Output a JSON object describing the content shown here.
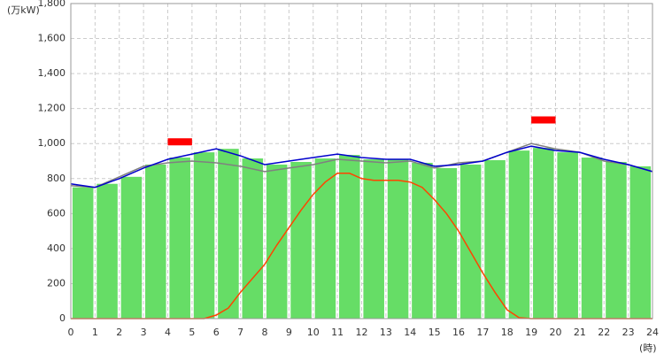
{
  "chart_data": {
    "type": "bar",
    "y_label": "(万kW)",
    "x_label": "(時)",
    "xlim": [
      0,
      24
    ],
    "xticks": [
      0,
      1,
      2,
      3,
      4,
      5,
      6,
      7,
      8,
      9,
      10,
      11,
      12,
      13,
      14,
      15,
      16,
      17,
      18,
      19,
      20,
      21,
      22,
      23,
      24
    ],
    "ylim": [
      0,
      1800
    ],
    "yticks": [
      0,
      200,
      400,
      600,
      800,
      {
        "value": 1000,
        "label": "1,000"
      },
      {
        "value": 1200,
        "label": "1,200"
      },
      {
        "value": 1400,
        "label": "1,400"
      },
      {
        "value": 1600,
        "label": "1,600"
      },
      {
        "value": 1800,
        "label": "1,800"
      }
    ],
    "grid": true,
    "series": [
      {
        "type": "bar",
        "color": "#66dd66",
        "x": [
          0,
          1,
          2,
          3,
          4,
          5,
          6,
          7,
          8,
          9,
          10,
          11,
          12,
          13,
          14,
          15,
          16,
          17,
          18,
          19,
          20,
          21,
          22,
          23
        ],
        "values": [
          750,
          770,
          810,
          880,
          920,
          950,
          970,
          915,
          880,
          895,
          915,
          935,
          910,
          910,
          890,
          860,
          880,
          905,
          960,
          975,
          950,
          920,
          895,
          870
        ]
      },
      {
        "type": "line",
        "color": "#808080",
        "x": [
          0,
          1,
          2,
          3,
          4,
          5,
          6,
          7,
          8,
          9,
          10,
          11,
          12,
          13,
          14,
          15,
          16,
          17,
          18,
          19,
          20,
          21,
          22,
          23,
          24
        ],
        "values": [
          760,
          750,
          810,
          870,
          890,
          900,
          890,
          870,
          840,
          860,
          880,
          910,
          900,
          890,
          900,
          860,
          890,
          900,
          950,
          1000,
          970,
          950,
          900,
          880,
          840
        ]
      },
      {
        "type": "line",
        "color": "#0000cc",
        "x": [
          0,
          1,
          2,
          3,
          4,
          5,
          6,
          7,
          8,
          9,
          10,
          11,
          12,
          13,
          14,
          15,
          16,
          17,
          18,
          19,
          20,
          21,
          22,
          23,
          24
        ],
        "values": [
          770,
          750,
          800,
          860,
          910,
          940,
          970,
          930,
          880,
          900,
          920,
          940,
          920,
          910,
          910,
          870,
          880,
          900,
          950,
          985,
          960,
          950,
          910,
          880,
          840
        ]
      },
      {
        "type": "line",
        "color": "#ff4400",
        "x": [
          0,
          5.5,
          6,
          6.5,
          7,
          7.5,
          8,
          8.5,
          9,
          9.5,
          10,
          10.5,
          11,
          11.5,
          12,
          12.5,
          13,
          13.5,
          14,
          14.5,
          15,
          15.5,
          16,
          16.5,
          17,
          17.5,
          18,
          18.5,
          19,
          24
        ],
        "values": [
          0,
          0,
          20,
          60,
          150,
          230,
          310,
          420,
          520,
          620,
          710,
          780,
          830,
          830,
          800,
          790,
          790,
          790,
          780,
          750,
          680,
          600,
          500,
          380,
          260,
          150,
          50,
          5,
          0,
          0
        ]
      },
      {
        "type": "marker",
        "color": "#ff0000",
        "x": [
          4.5,
          19.5
        ],
        "values": [
          1010,
          1135
        ]
      }
    ]
  }
}
